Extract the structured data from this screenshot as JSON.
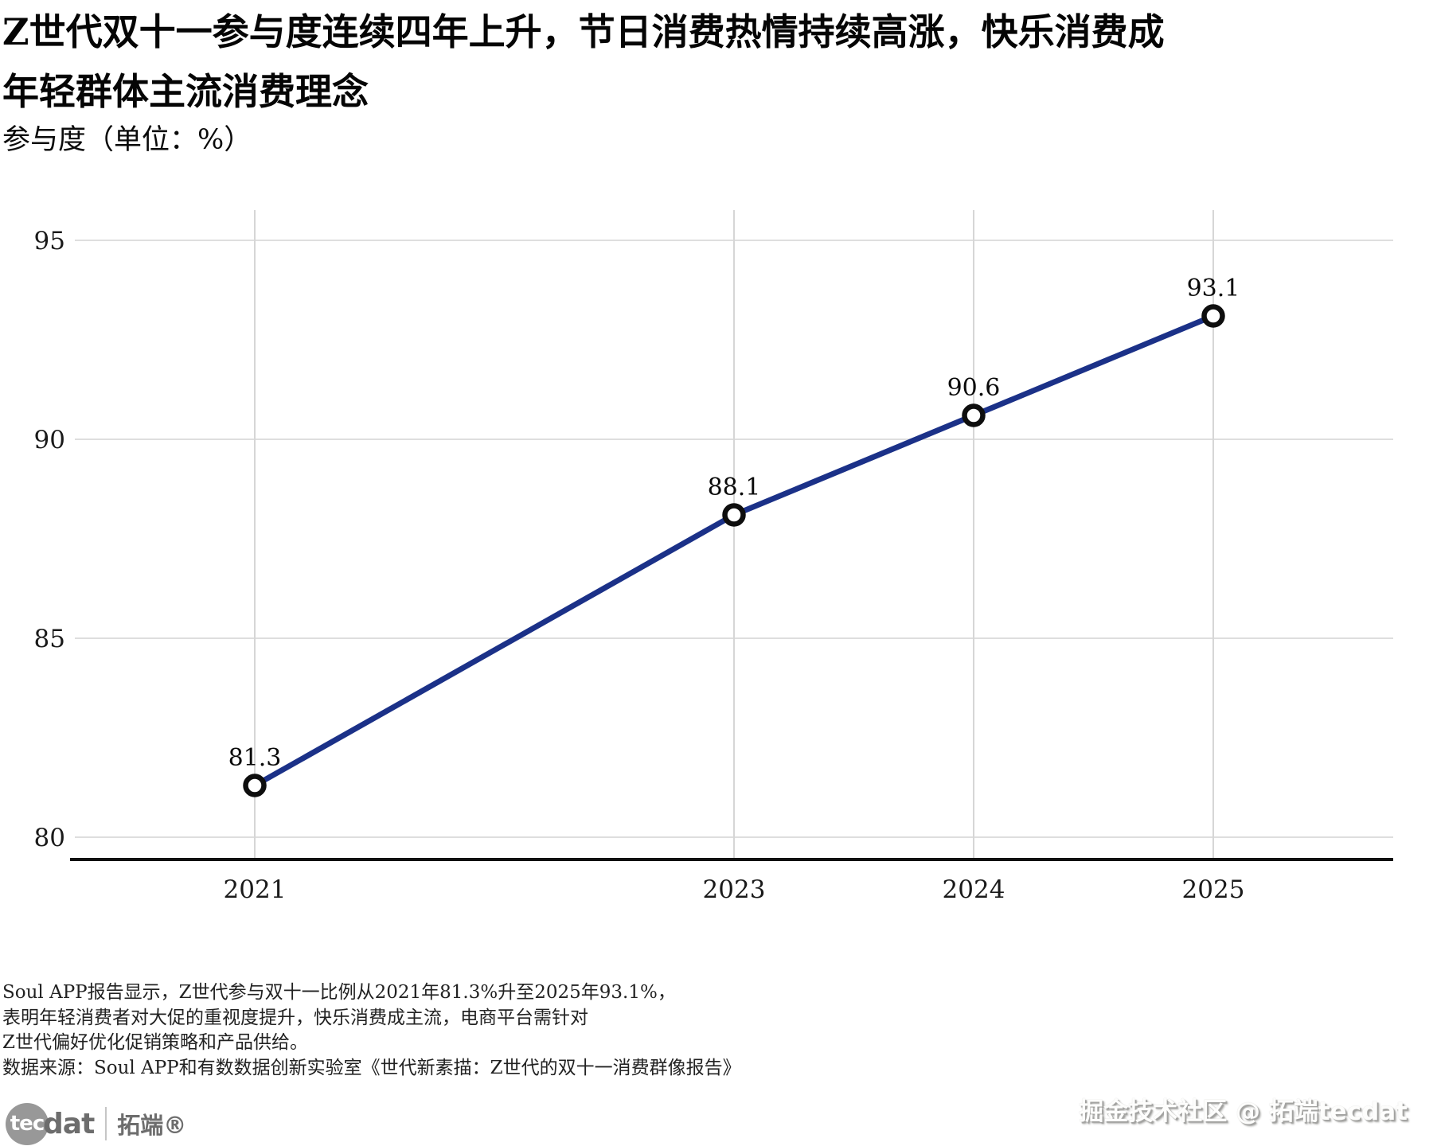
{
  "header": {
    "title_line1": "Z世代双十一参与度连续四年上升，节日消费热情持续高涨，快乐消费成",
    "title_line2": "年轻群体主流消费理念",
    "subtitle": "参与度（单位：%）"
  },
  "chart_data": {
    "type": "line",
    "x": [
      2021,
      2023,
      2024,
      2025
    ],
    "x_tick_labels": [
      "2021",
      "2023",
      "2024",
      "2025"
    ],
    "x_axis_type": "linear-year",
    "values": [
      81.3,
      88.1,
      90.6,
      93.1
    ],
    "data_labels": [
      "81.3",
      "88.1",
      "90.6",
      "93.1"
    ],
    "title": "Z世代双十一参与度连续四年上升，节日消费热情持续高涨，快乐消费成年轻群体主流消费理念",
    "ylabel": "参与度（单位：%）",
    "yticks": [
      80,
      85,
      90,
      95
    ],
    "ylim": [
      79.4,
      95.8
    ],
    "grid": true,
    "legend": false,
    "line_color": "#1b3188",
    "marker": "open-circle",
    "marker_stroke": "#0e0e0e",
    "marker_fill": "#ffffff",
    "grid_color_h": "#dedede",
    "grid_color_v": "#d6d6d6",
    "axis_color": "#111111",
    "tick_text_color": "#1a1a1a"
  },
  "footer": {
    "lines": [
      "Soul APP报告显示，Z世代参与双十一比例从2021年81.3%升至2025年93.1%，",
      "表明年轻消费者对大促的重视度提升，快乐消费成主流，电商平台需针对",
      "Z世代偏好优化促销策略和产品供给。",
      "数据来源：Soul APP和有数数据创新实验室《世代新素描：Z世代的双十一消费群像报告》"
    ]
  },
  "branding": {
    "logo_tec": "tec",
    "logo_dat": "dat",
    "logo_cn": "拓端®",
    "watermark": "掘金技术社区 @ 拓端tecdat"
  }
}
